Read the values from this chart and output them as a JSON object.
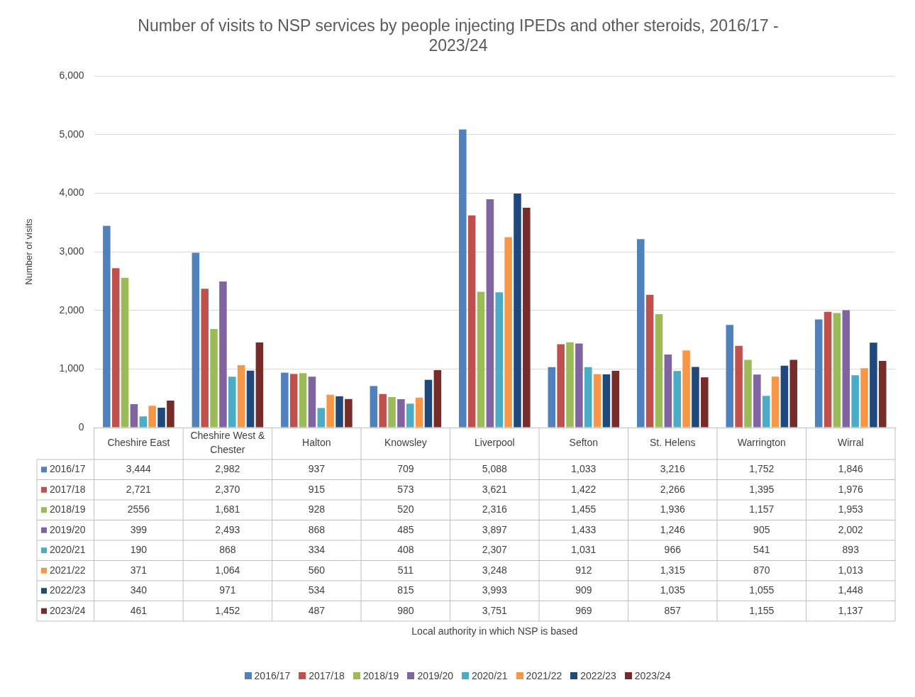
{
  "chart_data": {
    "type": "bar",
    "title": "Number of visits to NSP services by people injecting IPEDs and other steroids, 2016/17 - 2023/24",
    "annotations": [
      "Local authority in which NSP is based"
    ],
    "ylabel": "Number of visits",
    "categories": [
      "Cheshire East",
      "Cheshire West & Chester",
      "Halton",
      "Knowsley",
      "Liverpool",
      "Sefton",
      "St. Helens",
      "Warrington",
      "Wirral"
    ],
    "series": [
      {
        "name": "2016/17",
        "color": "#4f81bd",
        "values": [
          3444,
          2982,
          937,
          709,
          5088,
          1033,
          3216,
          1752,
          1846
        ],
        "value_labels": [
          "3,444",
          "2,982",
          "937",
          "709",
          "5,088",
          "1,033",
          "3,216",
          "1,752",
          "1,846"
        ]
      },
      {
        "name": "2017/18",
        "color": "#c0504d",
        "values": [
          2721,
          2370,
          915,
          573,
          3621,
          1422,
          2266,
          1395,
          1976
        ],
        "value_labels": [
          "2,721",
          "2,370",
          "915",
          "573",
          "3,621",
          "1,422",
          "2,266",
          "1,395",
          "1,976"
        ]
      },
      {
        "name": "2018/19",
        "color": "#9bbb59",
        "values": [
          2556,
          1681,
          928,
          520,
          2316,
          1455,
          1936,
          1157,
          1953
        ],
        "value_labels": [
          "2556",
          "1,681",
          "928",
          "520",
          "2,316",
          "1,455",
          "1,936",
          "1,157",
          "1,953"
        ]
      },
      {
        "name": "2019/20",
        "color": "#8064a2",
        "values": [
          399,
          2493,
          868,
          485,
          3897,
          1433,
          1246,
          905,
          2002
        ],
        "value_labels": [
          "399",
          "2,493",
          "868",
          "485",
          "3,897",
          "1,433",
          "1,246",
          "905",
          "2,002"
        ]
      },
      {
        "name": "2020/21",
        "color": "#4bacc6",
        "values": [
          190,
          868,
          334,
          408,
          2307,
          1031,
          966,
          541,
          893
        ],
        "value_labels": [
          "190",
          "868",
          "334",
          "408",
          "2,307",
          "1,031",
          "966",
          "541",
          "893"
        ]
      },
      {
        "name": "2021/22",
        "color": "#f79646",
        "values": [
          371,
          1064,
          560,
          511,
          3248,
          912,
          1315,
          870,
          1013
        ],
        "value_labels": [
          "371",
          "1,064",
          "560",
          "511",
          "3,248",
          "912",
          "1,315",
          "870",
          "1,013"
        ]
      },
      {
        "name": "2022/23",
        "color": "#1f497d",
        "values": [
          340,
          971,
          534,
          815,
          3993,
          909,
          1035,
          1055,
          1448
        ],
        "value_labels": [
          "340",
          "971",
          "534",
          "815",
          "3,993",
          "909",
          "1,035",
          "1,055",
          "1,448"
        ]
      },
      {
        "name": "2023/24",
        "color": "#772c2a",
        "values": [
          461,
          1452,
          487,
          980,
          3751,
          969,
          857,
          1155,
          1137
        ],
        "value_labels": [
          "461",
          "1,452",
          "487",
          "980",
          "3,751",
          "969",
          "857",
          "1,155",
          "1,137"
        ]
      }
    ],
    "ylim": [
      0,
      6000
    ],
    "yticks": [
      0,
      {
        "value": 1000,
        "label": "1,000"
      },
      {
        "value": 2000,
        "label": "2,000"
      },
      {
        "value": 3000,
        "label": "3,000"
      },
      {
        "value": 4000,
        "label": "4,000"
      },
      {
        "value": 5000,
        "label": "5,000"
      },
      {
        "value": 6000,
        "label": "6,000"
      }
    ],
    "grid": "y",
    "legend": "bottom"
  }
}
